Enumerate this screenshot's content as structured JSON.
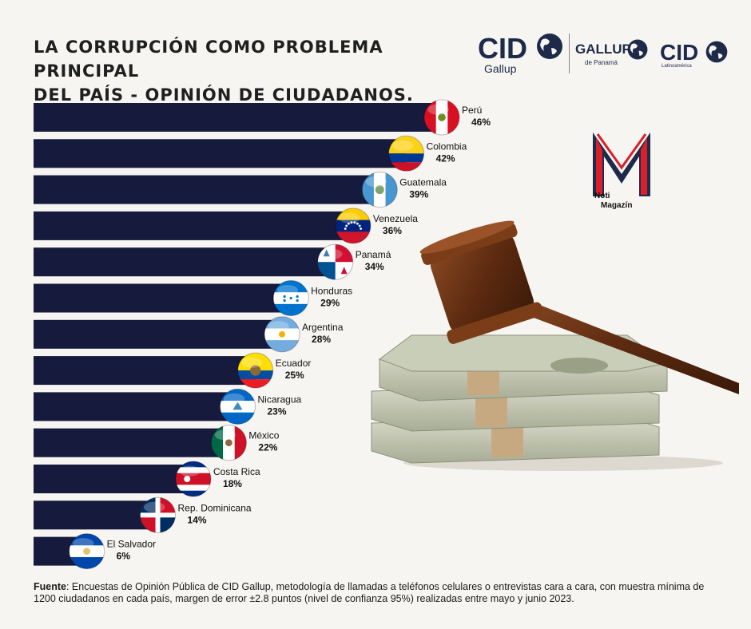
{
  "title": {
    "line1": "LA CORRUPCIÓN COMO PROBLEMA PRINCIPAL",
    "line2": "DEL PAÍS - OPINIÓN DE CIUDADANOS."
  },
  "logos": {
    "cid_gallup": {
      "main": "CID",
      "sub": "Gallup"
    },
    "gallup_panama": {
      "main": "GALLUP",
      "sub": "de Panamá"
    },
    "cid_latino": {
      "main": "CID",
      "sub": "Latinoamérica"
    },
    "noti_magazin": {
      "line1": "Noti",
      "line2": "Magazín"
    }
  },
  "chart_data": {
    "type": "bar",
    "orientation": "horizontal",
    "title": "LA CORRUPCIÓN COMO PROBLEMA PRINCIPAL DEL PAÍS - OPINIÓN DE CIUDADANOS.",
    "unit": "%",
    "xlim": [
      0,
      46
    ],
    "categories": [
      "Perú",
      "Colombia",
      "Guatemala",
      "Venezuela",
      "Panamá",
      "Honduras",
      "Argentina",
      "Ecuador",
      "Nicaragua",
      "México",
      "Costa Rica",
      "Rep. Dominicana",
      "El Salvador"
    ],
    "values": [
      46,
      42,
      39,
      36,
      34,
      29,
      28,
      25,
      23,
      22,
      18,
      14,
      6
    ],
    "value_labels": [
      "46%",
      "42%",
      "39%",
      "36%",
      "34%",
      "29%",
      "28%",
      "25%",
      "23%",
      "22%",
      "18%",
      "14%",
      "6%"
    ],
    "bar_color": "#161a3c"
  },
  "footer": {
    "label": "Fuente",
    "text": ": Encuestas de Opinión Pública de CID Gallup, metodología de llamadas a teléfonos celulares o entrevistas cara a cara, con muestra mínima de 1200 ciudadanos en cada país, margen de error ±2.8 puntos (nivel de confianza 95%) realizadas entre mayo y junio 2023."
  }
}
